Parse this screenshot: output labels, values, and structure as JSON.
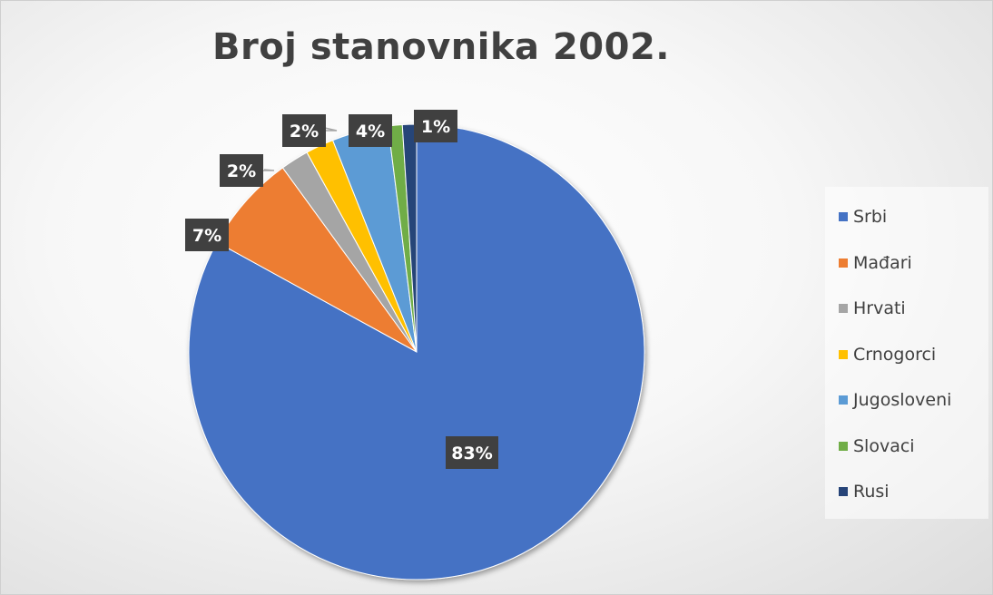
{
  "chart_data": {
    "type": "pie",
    "title": "Broj stanovnika 2002.",
    "legend_position": "right",
    "slices": [
      {
        "name": "Srbi",
        "value": 83,
        "label": "83%",
        "color": "#4472C4"
      },
      {
        "name": "Mađari",
        "value": 7,
        "label": "7%",
        "color": "#ED7D31"
      },
      {
        "name": "Hrvati",
        "value": 2,
        "label": "2%",
        "color": "#A5A5A5"
      },
      {
        "name": "Crnogorci",
        "value": 2,
        "label": "2%",
        "color": "#FFC000"
      },
      {
        "name": "Jugosloveni",
        "value": 4,
        "label": "4%",
        "color": "#5B9BD5"
      },
      {
        "name": "Slovaci",
        "value": 1,
        "label": "1%",
        "color": "#70AD47"
      },
      {
        "name": "Rusi",
        "value": 1,
        "label": "1%",
        "color": "#264478"
      }
    ]
  }
}
